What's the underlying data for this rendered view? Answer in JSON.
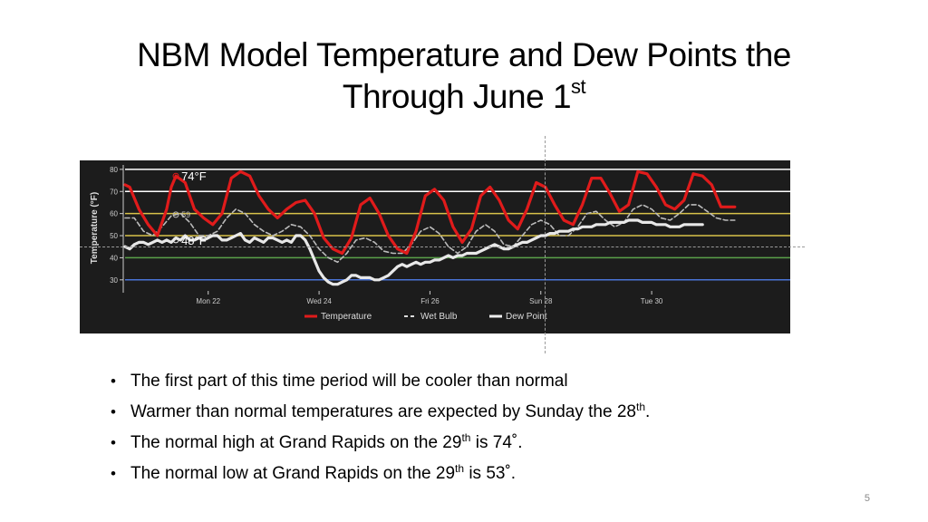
{
  "slide": {
    "title_line1": "NBM Model Temperature  and Dew Points  the",
    "title_line2": "Through June 1",
    "title_sup": "st",
    "slide_number": "5"
  },
  "bullets": [
    {
      "pre": "The first part of this time period will be cooler than normal",
      "sup": "",
      "post": ""
    },
    {
      "pre": "Warmer than normal temperatures are expected by Sunday the 28",
      "sup": "th",
      "post": "."
    },
    {
      "pre": "The normal high at Grand Rapids on the 29",
      "sup": "th",
      "post": " is 74˚."
    },
    {
      "pre": "The normal low at Grand Rapids on the 29",
      "sup": "th",
      "post": " is 53˚."
    }
  ],
  "chart_data": {
    "type": "line",
    "ylabel": "Temperature (°F)",
    "ylim": [
      25,
      82
    ],
    "yticks": [
      30,
      40,
      50,
      60,
      70,
      80
    ],
    "xlim": [
      0,
      144
    ],
    "xticks": [
      {
        "x": 18,
        "label": "Mon 22"
      },
      {
        "x": 42,
        "label": "Wed 24"
      },
      {
        "x": 66,
        "label": "Fri 26"
      },
      {
        "x": 90,
        "label": "Sun 28"
      },
      {
        "x": 114,
        "label": "Tue 30"
      }
    ],
    "reference_lines": [
      {
        "y": 30,
        "color": "#4a74d6"
      },
      {
        "y": 40,
        "color": "#5aa14a"
      },
      {
        "y": 50,
        "color": "#d8c24a"
      },
      {
        "y": 60,
        "color": "#d8c24a"
      },
      {
        "y": 70,
        "color": "#ffffff"
      },
      {
        "y": 80,
        "color": "#ffffff"
      }
    ],
    "tooltip": {
      "temperature": "74°F",
      "wet_bulb": "59",
      "dew_point": "48°F"
    },
    "legend": {
      "position": "bottom",
      "temperature": "Temperature",
      "wet_bulb": "Wet Bulb",
      "dew_point": "Dew Point"
    },
    "series": [
      {
        "name": "Temperature",
        "color": "#e01b1b",
        "points": [
          [
            0,
            73
          ],
          [
            1,
            72
          ],
          [
            3,
            62
          ],
          [
            5,
            55
          ],
          [
            7,
            50
          ],
          [
            9,
            62
          ],
          [
            10,
            72
          ],
          [
            11,
            77
          ],
          [
            13,
            74
          ],
          [
            15,
            62
          ],
          [
            17,
            58
          ],
          [
            19,
            55
          ],
          [
            21,
            60
          ],
          [
            23,
            76
          ],
          [
            25,
            79
          ],
          [
            27,
            77
          ],
          [
            29,
            68
          ],
          [
            31,
            62
          ],
          [
            33,
            58
          ],
          [
            35,
            62
          ],
          [
            37,
            65
          ],
          [
            39,
            66
          ],
          [
            41,
            60
          ],
          [
            43,
            49
          ],
          [
            45,
            44
          ],
          [
            47,
            42
          ],
          [
            49,
            49
          ],
          [
            51,
            64
          ],
          [
            53,
            67
          ],
          [
            55,
            60
          ],
          [
            57,
            50
          ],
          [
            59,
            44
          ],
          [
            61,
            42
          ],
          [
            63,
            52
          ],
          [
            65,
            68
          ],
          [
            67,
            71
          ],
          [
            69,
            66
          ],
          [
            71,
            54
          ],
          [
            73,
            47
          ],
          [
            75,
            53
          ],
          [
            77,
            68
          ],
          [
            79,
            72
          ],
          [
            81,
            66
          ],
          [
            83,
            57
          ],
          [
            85,
            53
          ],
          [
            87,
            62
          ],
          [
            89,
            74
          ],
          [
            91,
            72
          ],
          [
            93,
            64
          ],
          [
            95,
            57
          ],
          [
            97,
            55
          ],
          [
            99,
            64
          ],
          [
            101,
            76
          ],
          [
            103,
            76
          ],
          [
            105,
            69
          ],
          [
            107,
            61
          ],
          [
            109,
            64
          ],
          [
            111,
            79
          ],
          [
            113,
            78
          ],
          [
            115,
            72
          ],
          [
            117,
            64
          ],
          [
            119,
            62
          ],
          [
            121,
            66
          ],
          [
            123,
            78
          ],
          [
            125,
            77
          ],
          [
            127,
            73
          ],
          [
            129,
            63
          ],
          [
            131,
            63
          ],
          [
            132,
            63
          ]
        ]
      },
      {
        "name": "Wet Bulb",
        "color": "#bbbbbb",
        "points": [
          [
            0,
            58
          ],
          [
            2,
            58
          ],
          [
            4,
            52
          ],
          [
            6,
            50
          ],
          [
            8,
            54
          ],
          [
            10,
            59
          ],
          [
            12,
            60
          ],
          [
            14,
            56
          ],
          [
            16,
            50
          ],
          [
            18,
            50
          ],
          [
            20,
            52
          ],
          [
            22,
            58
          ],
          [
            24,
            62
          ],
          [
            26,
            60
          ],
          [
            28,
            55
          ],
          [
            30,
            52
          ],
          [
            32,
            50
          ],
          [
            34,
            52
          ],
          [
            36,
            55
          ],
          [
            38,
            54
          ],
          [
            40,
            50
          ],
          [
            42,
            44
          ],
          [
            44,
            40
          ],
          [
            46,
            38
          ],
          [
            48,
            42
          ],
          [
            50,
            48
          ],
          [
            52,
            49
          ],
          [
            54,
            47
          ],
          [
            56,
            43
          ],
          [
            58,
            42
          ],
          [
            60,
            42
          ],
          [
            62,
            46
          ],
          [
            64,
            52
          ],
          [
            66,
            54
          ],
          [
            68,
            51
          ],
          [
            70,
            45
          ],
          [
            72,
            42
          ],
          [
            74,
            45
          ],
          [
            76,
            52
          ],
          [
            78,
            55
          ],
          [
            80,
            52
          ],
          [
            82,
            46
          ],
          [
            84,
            45
          ],
          [
            86,
            50
          ],
          [
            88,
            55
          ],
          [
            90,
            57
          ],
          [
            92,
            55
          ],
          [
            94,
            50
          ],
          [
            96,
            50
          ],
          [
            98,
            54
          ],
          [
            100,
            60
          ],
          [
            102,
            61
          ],
          [
            104,
            57
          ],
          [
            106,
            54
          ],
          [
            108,
            56
          ],
          [
            110,
            62
          ],
          [
            112,
            64
          ],
          [
            114,
            62
          ],
          [
            116,
            58
          ],
          [
            118,
            57
          ],
          [
            120,
            60
          ],
          [
            122,
            64
          ],
          [
            124,
            64
          ],
          [
            126,
            61
          ],
          [
            128,
            58
          ],
          [
            130,
            57
          ],
          [
            132,
            57
          ]
        ]
      },
      {
        "name": "Dew Point",
        "color": "#e8e8e8",
        "points": [
          [
            0,
            45
          ],
          [
            1,
            44
          ],
          [
            2,
            46
          ],
          [
            3,
            47
          ],
          [
            4,
            47
          ],
          [
            5,
            46
          ],
          [
            6,
            47
          ],
          [
            7,
            48
          ],
          [
            8,
            47
          ],
          [
            9,
            48
          ],
          [
            10,
            47
          ],
          [
            11,
            49
          ],
          [
            12,
            48
          ],
          [
            13,
            50
          ],
          [
            14,
            48
          ],
          [
            15,
            48
          ],
          [
            16,
            49
          ],
          [
            17,
            48
          ],
          [
            18,
            49
          ],
          [
            19,
            50
          ],
          [
            20,
            50
          ],
          [
            21,
            48
          ],
          [
            22,
            48
          ],
          [
            23,
            49
          ],
          [
            24,
            50
          ],
          [
            25,
            51
          ],
          [
            26,
            48
          ],
          [
            27,
            47
          ],
          [
            28,
            49
          ],
          [
            29,
            48
          ],
          [
            30,
            47
          ],
          [
            31,
            49
          ],
          [
            32,
            49
          ],
          [
            33,
            48
          ],
          [
            34,
            47
          ],
          [
            35,
            48
          ],
          [
            36,
            47
          ],
          [
            37,
            50
          ],
          [
            38,
            50
          ],
          [
            39,
            48
          ],
          [
            40,
            44
          ],
          [
            41,
            39
          ],
          [
            42,
            34
          ],
          [
            43,
            31
          ],
          [
            44,
            29
          ],
          [
            45,
            28
          ],
          [
            46,
            28
          ],
          [
            47,
            29
          ],
          [
            48,
            30
          ],
          [
            49,
            32
          ],
          [
            50,
            32
          ],
          [
            51,
            31
          ],
          [
            52,
            31
          ],
          [
            53,
            31
          ],
          [
            54,
            30
          ],
          [
            55,
            30
          ],
          [
            56,
            31
          ],
          [
            57,
            32
          ],
          [
            58,
            34
          ],
          [
            59,
            36
          ],
          [
            60,
            37
          ],
          [
            61,
            36
          ],
          [
            62,
            37
          ],
          [
            63,
            38
          ],
          [
            64,
            37
          ],
          [
            65,
            38
          ],
          [
            66,
            38
          ],
          [
            67,
            39
          ],
          [
            68,
            39
          ],
          [
            69,
            40
          ],
          [
            70,
            41
          ],
          [
            71,
            40
          ],
          [
            72,
            41
          ],
          [
            73,
            41
          ],
          [
            74,
            42
          ],
          [
            75,
            42
          ],
          [
            76,
            42
          ],
          [
            77,
            43
          ],
          [
            78,
            44
          ],
          [
            79,
            45
          ],
          [
            80,
            46
          ],
          [
            81,
            45
          ],
          [
            82,
            44
          ],
          [
            83,
            44
          ],
          [
            84,
            45
          ],
          [
            85,
            46
          ],
          [
            86,
            47
          ],
          [
            87,
            47
          ],
          [
            88,
            48
          ],
          [
            89,
            49
          ],
          [
            90,
            50
          ],
          [
            91,
            50
          ],
          [
            92,
            51
          ],
          [
            93,
            51
          ],
          [
            94,
            52
          ],
          [
            95,
            52
          ],
          [
            96,
            52
          ],
          [
            97,
            53
          ],
          [
            98,
            53
          ],
          [
            99,
            54
          ],
          [
            100,
            54
          ],
          [
            101,
            54
          ],
          [
            102,
            55
          ],
          [
            103,
            55
          ],
          [
            104,
            55
          ],
          [
            105,
            56
          ],
          [
            106,
            56
          ],
          [
            107,
            56
          ],
          [
            108,
            56
          ],
          [
            109,
            57
          ],
          [
            110,
            57
          ],
          [
            111,
            57
          ],
          [
            112,
            56
          ],
          [
            113,
            56
          ],
          [
            114,
            56
          ],
          [
            115,
            55
          ],
          [
            116,
            55
          ],
          [
            117,
            55
          ],
          [
            118,
            54
          ],
          [
            119,
            54
          ],
          [
            120,
            54
          ],
          [
            121,
            55
          ],
          [
            122,
            55
          ],
          [
            123,
            55
          ],
          [
            124,
            55
          ],
          [
            125,
            55
          ]
        ]
      }
    ]
  }
}
